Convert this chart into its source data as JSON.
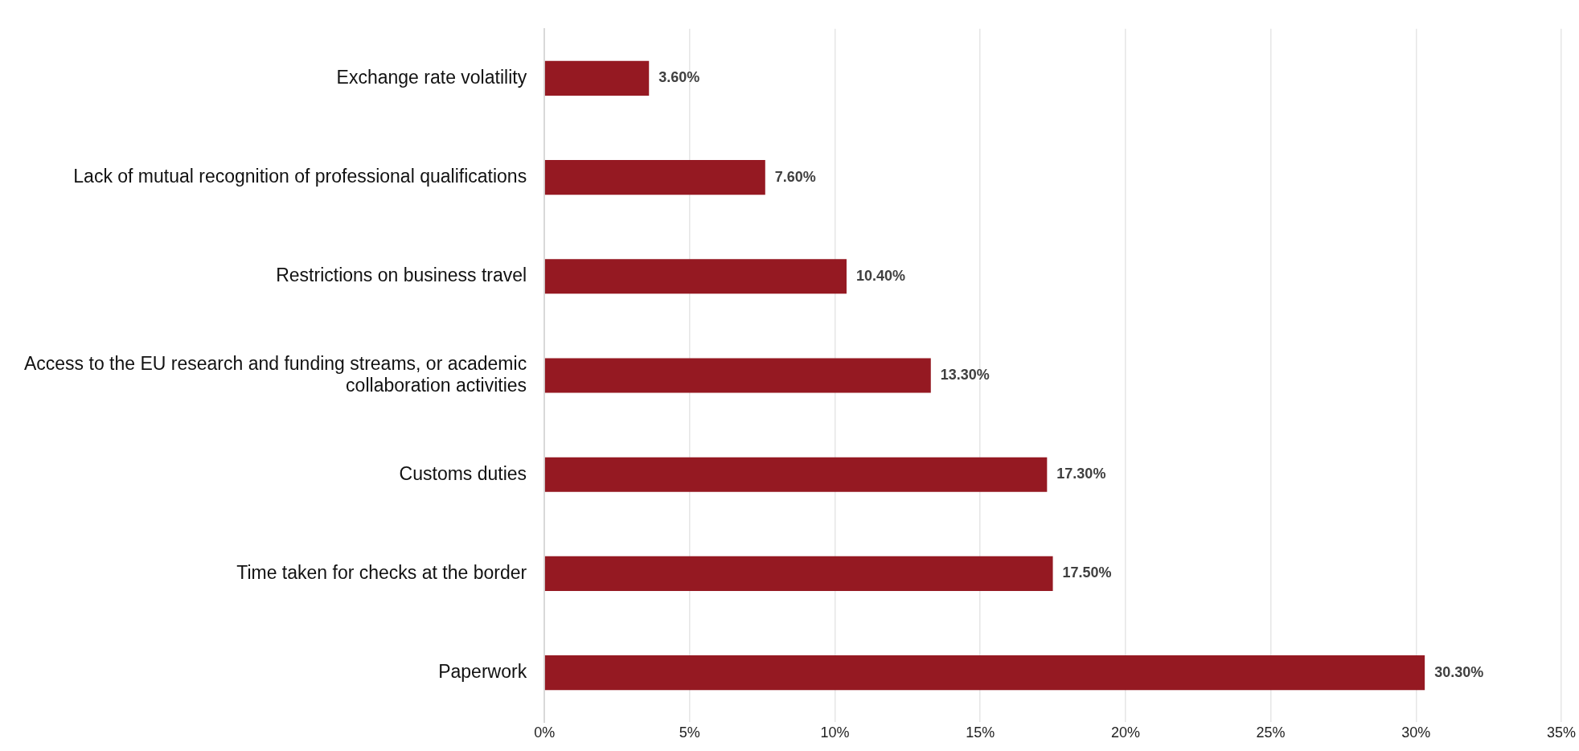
{
  "chart_data": {
    "type": "bar",
    "orientation": "horizontal",
    "categories": [
      "Exchange rate volatility",
      "Lack of mutual recognition of professional qualifications",
      "Restrictions on business travel",
      "Access to the EU research and funding streams, or academic collaboration activities",
      "Customs duties",
      "Time taken for checks at the border",
      "Paperwork"
    ],
    "values": [
      3.6,
      7.6,
      10.4,
      13.3,
      17.3,
      17.5,
      30.3
    ],
    "value_labels": [
      "3.60%",
      "7.60%",
      "10.40%",
      "13.30%",
      "17.30%",
      "17.50%",
      "30.30%"
    ],
    "color": "#951922",
    "xlim": [
      0,
      35
    ],
    "xticks": [
      {
        "value": 0,
        "label": "0%"
      },
      {
        "value": 5,
        "label": "5%"
      },
      {
        "value": 10,
        "label": "10%"
      },
      {
        "value": 15,
        "label": "15%"
      },
      {
        "value": 20,
        "label": "20%"
      },
      {
        "value": 25,
        "label": "25%"
      },
      {
        "value": 30,
        "label": "30%"
      },
      {
        "value": 35,
        "label": "35%"
      }
    ],
    "grid": "x",
    "legend": false
  }
}
